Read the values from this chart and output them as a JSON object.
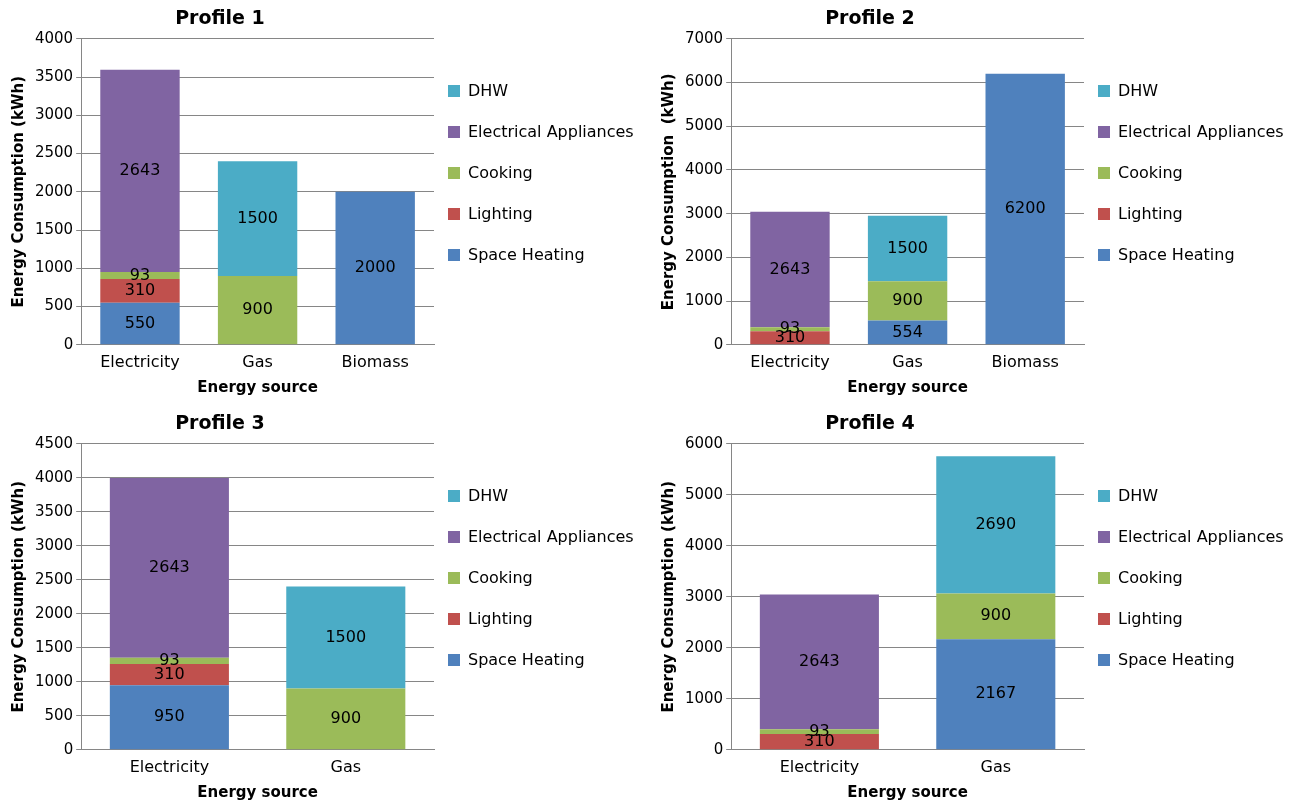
{
  "chart_data": [
    {
      "type": "bar",
      "title": "Profile 1",
      "xlabel": "Energy source",
      "ylabel": "Energy Consumption (kWh)",
      "categories": [
        "Electricity",
        "Gas",
        "Biomass"
      ],
      "stacked": true,
      "data_labels": true,
      "grid": "y",
      "legend": "right",
      "ylim": [
        0,
        4000
      ],
      "yticks": [
        0,
        500,
        1000,
        1500,
        2000,
        2500,
        3000,
        3500,
        4000
      ],
      "series": [
        {
          "name": "Space Heating",
          "color": "#4f81bd",
          "values": [
            550,
            null,
            2000
          ]
        },
        {
          "name": "Lighting",
          "color": "#c0504d",
          "values": [
            310,
            null,
            null
          ]
        },
        {
          "name": "Cooking",
          "color": "#9bbb59",
          "values": [
            93,
            900,
            null
          ]
        },
        {
          "name": "Electrical Appliances",
          "color": "#8064a2",
          "values": [
            2643,
            null,
            null
          ]
        },
        {
          "name": "DHW",
          "color": "#4bacc6",
          "values": [
            null,
            1500,
            null
          ]
        }
      ]
    },
    {
      "type": "bar",
      "title": "Profile 2",
      "xlabel": "Energy source",
      "ylabel": "Energy Consumption  (kWh)",
      "categories": [
        "Electricity",
        "Gas",
        "Biomass"
      ],
      "stacked": true,
      "data_labels": true,
      "grid": "y",
      "legend": "right",
      "ylim": [
        0,
        7000
      ],
      "yticks": [
        0,
        1000,
        2000,
        3000,
        4000,
        5000,
        6000,
        7000
      ],
      "series": [
        {
          "name": "Space Heating",
          "color": "#4f81bd",
          "values": [
            null,
            554,
            6200
          ]
        },
        {
          "name": "Lighting",
          "color": "#c0504d",
          "values": [
            310,
            null,
            null
          ]
        },
        {
          "name": "Cooking",
          "color": "#9bbb59",
          "values": [
            93,
            900,
            null
          ]
        },
        {
          "name": "Electrical Appliances",
          "color": "#8064a2",
          "values": [
            2643,
            null,
            null
          ]
        },
        {
          "name": "DHW",
          "color": "#4bacc6",
          "values": [
            null,
            1500,
            null
          ]
        }
      ]
    },
    {
      "type": "bar",
      "title": "Profile 3",
      "xlabel": "Energy source",
      "ylabel": "Energy Consumption (kWh)",
      "categories": [
        "Electricity",
        "Gas"
      ],
      "stacked": true,
      "data_labels": true,
      "grid": "y",
      "legend": "right",
      "ylim": [
        0,
        4500
      ],
      "yticks": [
        0,
        500,
        1000,
        1500,
        2000,
        2500,
        3000,
        3500,
        4000,
        4500
      ],
      "series": [
        {
          "name": "Space Heating",
          "color": "#4f81bd",
          "values": [
            950,
            null
          ]
        },
        {
          "name": "Lighting",
          "color": "#c0504d",
          "values": [
            310,
            null
          ]
        },
        {
          "name": "Cooking",
          "color": "#9bbb59",
          "values": [
            93,
            900
          ]
        },
        {
          "name": "Electrical Appliances",
          "color": "#8064a2",
          "values": [
            2643,
            null
          ]
        },
        {
          "name": "DHW",
          "color": "#4bacc6",
          "values": [
            null,
            1500
          ]
        }
      ]
    },
    {
      "type": "bar",
      "title": "Profile 4",
      "xlabel": "Energy source",
      "ylabel": "Energy Consumption (kWh)",
      "categories": [
        "Electricity",
        "Gas"
      ],
      "stacked": true,
      "data_labels": true,
      "grid": "y",
      "legend": "right",
      "ylim": [
        0,
        6000
      ],
      "yticks": [
        0,
        1000,
        2000,
        3000,
        4000,
        5000,
        6000
      ],
      "series": [
        {
          "name": "Space Heating",
          "color": "#4f81bd",
          "values": [
            null,
            2167
          ]
        },
        {
          "name": "Lighting",
          "color": "#c0504d",
          "values": [
            310,
            null
          ]
        },
        {
          "name": "Cooking",
          "color": "#9bbb59",
          "values": [
            93,
            900
          ]
        },
        {
          "name": "Electrical Appliances",
          "color": "#8064a2",
          "values": [
            2643,
            null
          ]
        },
        {
          "name": "DHW",
          "color": "#4bacc6",
          "values": [
            null,
            2690
          ]
        }
      ]
    }
  ]
}
